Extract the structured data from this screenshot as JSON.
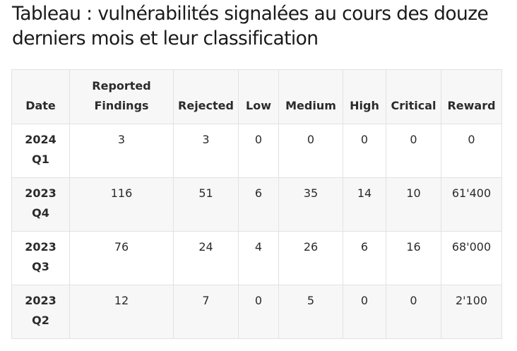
{
  "title": "Tableau : vulnérabilités signalées au cours des douze derniers mois et leur classification",
  "table": {
    "headers": [
      {
        "line1": "",
        "line2": "Date"
      },
      {
        "line1": "Reported",
        "line2": "Findings"
      },
      {
        "line1": "",
        "line2": "Rejected"
      },
      {
        "line1": "",
        "line2": "Low"
      },
      {
        "line1": "",
        "line2": "Medium"
      },
      {
        "line1": "",
        "line2": "High"
      },
      {
        "line1": "",
        "line2": "Critical"
      },
      {
        "line1": "",
        "line2": "Reward"
      }
    ],
    "rows": [
      {
        "date_year": "2024",
        "date_quarter": "Q1",
        "reported": "3",
        "rejected": "3",
        "low": "0",
        "medium": "0",
        "high": "0",
        "critical": "0",
        "reward": "0"
      },
      {
        "date_year": "2023",
        "date_quarter": "Q4",
        "reported": "116",
        "rejected": "51",
        "low": "6",
        "medium": "35",
        "high": "14",
        "critical": "10",
        "reward": "61'400"
      },
      {
        "date_year": "2023",
        "date_quarter": "Q3",
        "reported": "76",
        "rejected": "24",
        "low": "4",
        "medium": "26",
        "high": "6",
        "critical": "16",
        "reward": "68'000"
      },
      {
        "date_year": "2023",
        "date_quarter": "Q2",
        "reported": "12",
        "rejected": "7",
        "low": "0",
        "medium": "5",
        "high": "0",
        "critical": "0",
        "reward": "2'100"
      }
    ]
  }
}
